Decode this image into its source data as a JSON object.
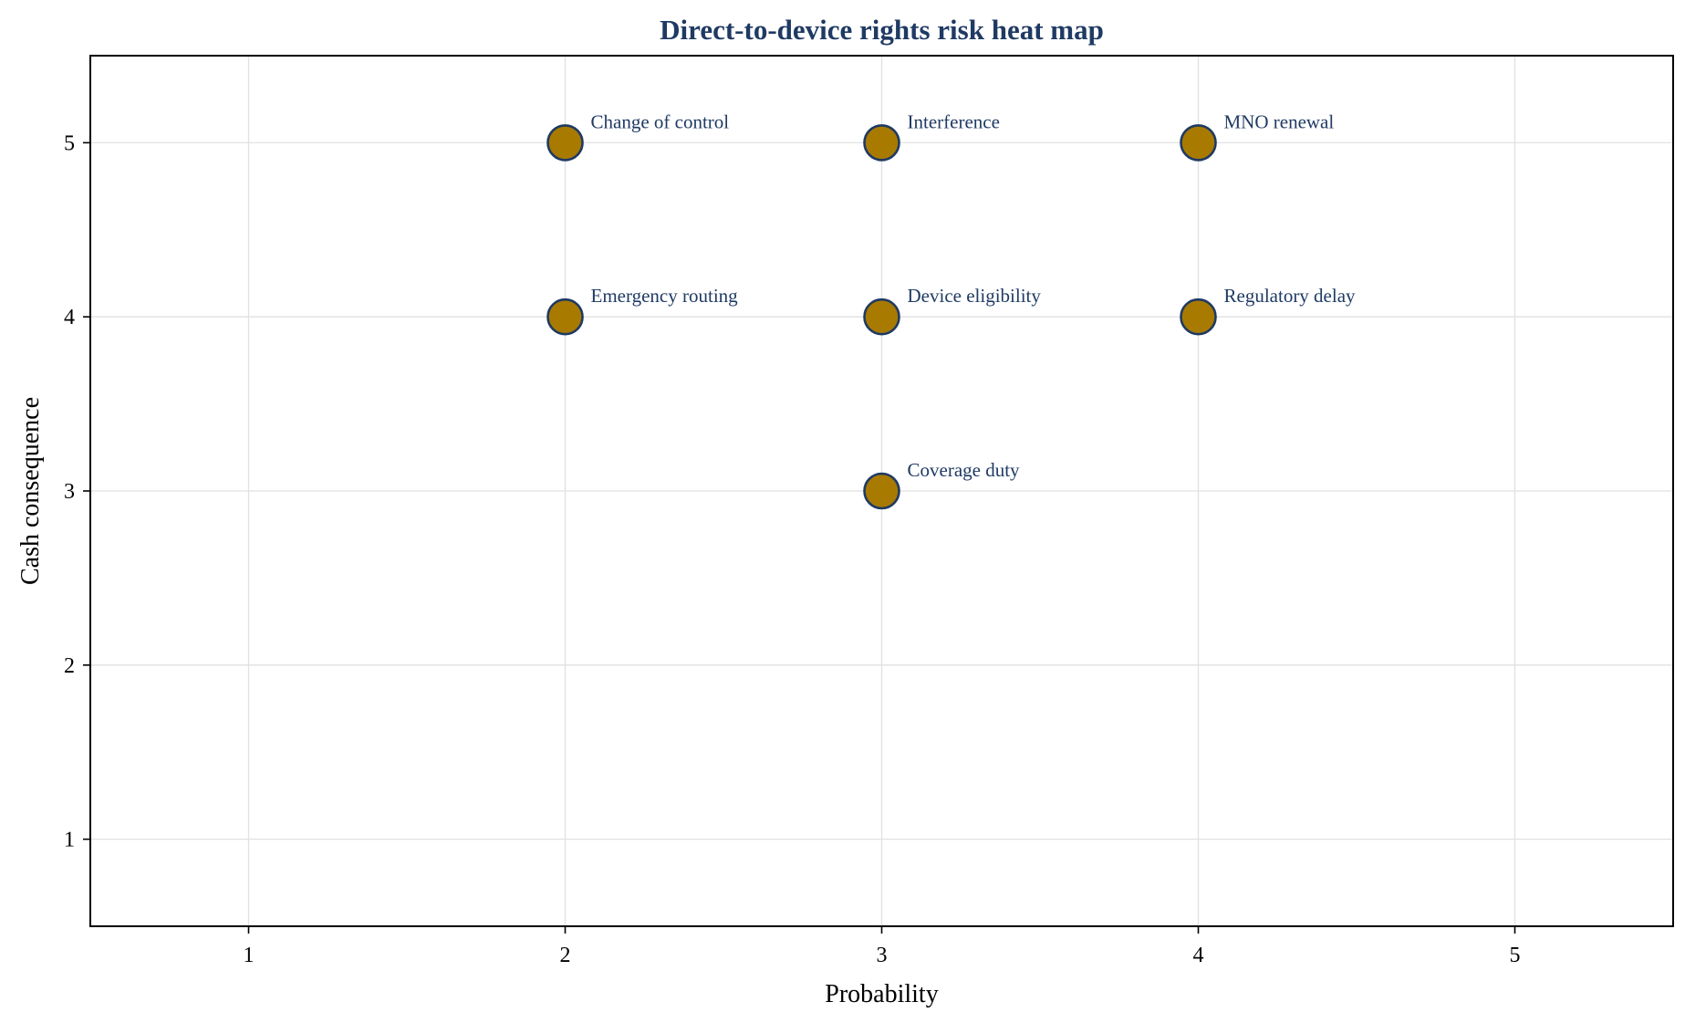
{
  "chart_data": {
    "type": "scatter",
    "title": "Direct-to-device rights risk heat map",
    "xlabel": "Probability",
    "ylabel": "Cash consequence",
    "xlim": [
      0.5,
      5.5
    ],
    "ylim": [
      0.5,
      5.5
    ],
    "xticks": [
      "1",
      "2",
      "3",
      "4",
      "5"
    ],
    "yticks": [
      "1",
      "2",
      "3",
      "4",
      "5"
    ],
    "grid": true,
    "legend": "none",
    "points": [
      {
        "label": "Change of control",
        "x": 2,
        "y": 5
      },
      {
        "label": "Interference",
        "x": 3,
        "y": 5
      },
      {
        "label": "MNO renewal",
        "x": 4,
        "y": 5
      },
      {
        "label": "Emergency routing",
        "x": 2,
        "y": 4
      },
      {
        "label": "Device eligibility",
        "x": 3,
        "y": 4
      },
      {
        "label": "Regulatory delay",
        "x": 4,
        "y": 4
      },
      {
        "label": "Coverage duty",
        "x": 3,
        "y": 3
      }
    ],
    "colors": {
      "marker_fill": "#a87a00",
      "marker_edge": "#1f3a63",
      "label_text": "#1f3a63",
      "title_text": "#1f3a63"
    }
  }
}
